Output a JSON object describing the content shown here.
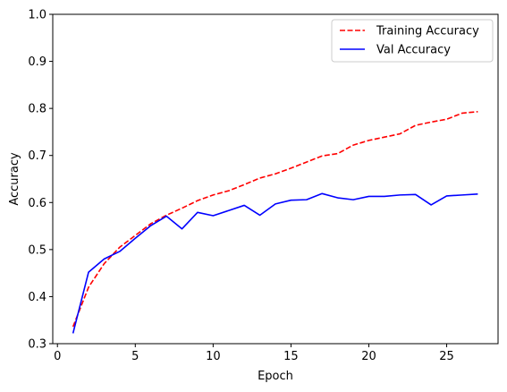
{
  "chart_data": {
    "type": "line",
    "title": "",
    "xlabel": "Epoch",
    "ylabel": "Accuracy",
    "xlim": [
      -0.3,
      28.3
    ],
    "ylim": [
      0.3,
      1.0
    ],
    "xticks": [
      0,
      5,
      10,
      15,
      20,
      25
    ],
    "yticks": [
      0.3,
      0.4,
      0.5,
      0.6,
      0.7,
      0.8,
      0.9,
      1.0
    ],
    "grid": false,
    "legend_position": "top-right",
    "x": [
      1,
      2,
      3,
      4,
      5,
      6,
      7,
      8,
      9,
      10,
      11,
      12,
      13,
      14,
      15,
      16,
      17,
      18,
      19,
      20,
      21,
      22,
      23,
      24,
      25,
      26,
      27
    ],
    "series": [
      {
        "name": "Training Accuracy",
        "color": "#ff0000",
        "style": "dashed",
        "values": [
          0.336,
          0.42,
          0.47,
          0.505,
          0.53,
          0.555,
          0.573,
          0.588,
          0.604,
          0.616,
          0.625,
          0.638,
          0.652,
          0.661,
          0.673,
          0.686,
          0.699,
          0.704,
          0.722,
          0.732,
          0.739,
          0.746,
          0.764,
          0.771,
          0.777,
          0.79,
          0.793
        ]
      },
      {
        "name": "Val Accuracy",
        "color": "#0000ff",
        "style": "solid",
        "values": [
          0.322,
          0.452,
          0.48,
          0.496,
          0.524,
          0.551,
          0.571,
          0.544,
          0.579,
          0.572,
          0.583,
          0.594,
          0.573,
          0.597,
          0.605,
          0.606,
          0.619,
          0.61,
          0.606,
          0.613,
          0.613,
          0.616,
          0.617,
          0.595,
          0.614,
          0.616,
          0.618
        ]
      }
    ]
  }
}
